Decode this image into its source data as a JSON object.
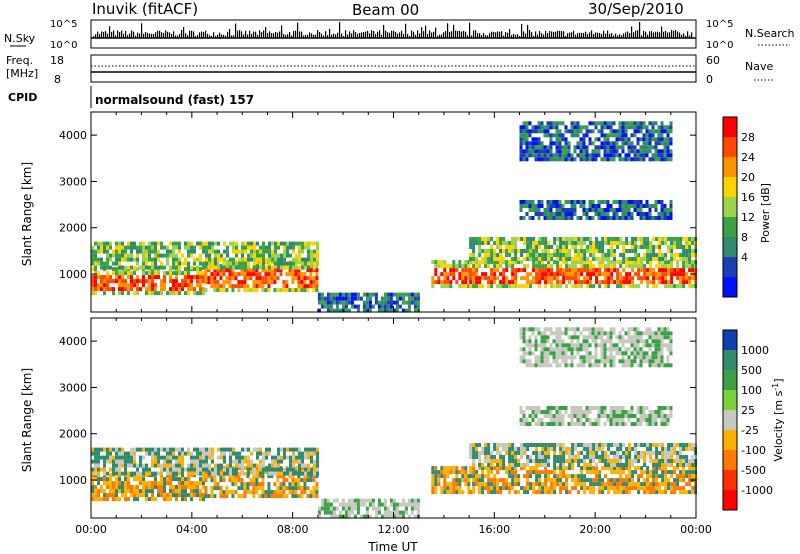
{
  "header": {
    "station": "Inuvik (fitACF)",
    "beam": "Beam 00",
    "date": "30/Sep/2010"
  },
  "noise_panel": {
    "left_label": "N.Sky",
    "right_label": "N.Search",
    "left_ticks": [
      "10^5",
      "10^0"
    ],
    "right_ticks": [
      "10^5",
      "10^0"
    ]
  },
  "freq_panel": {
    "left_label_1": "Freq.",
    "left_label_2": "[MHz]",
    "right_label": "Nave",
    "left_ticks": [
      "18",
      "8"
    ],
    "right_ticks": [
      "60",
      "0"
    ]
  },
  "cpid": {
    "label": "CPID",
    "program": "normalsound (fast) 157"
  },
  "chart_data": [
    {
      "type": "heatmap",
      "parameter": "power",
      "ylabel": "Slant Range [km]",
      "yticks": [
        1000,
        2000,
        3000,
        4000
      ],
      "ylim": [
        180,
        4500
      ],
      "xticks": [
        "00:00",
        "04:00",
        "08:00",
        "12:00",
        "16:00",
        "20:00",
        "00:00"
      ],
      "xlim_hours": [
        0,
        24
      ],
      "colorbar": {
        "label": "Power [dB]",
        "ticks": [
          "28",
          "24",
          "20",
          "16",
          "12",
          "8",
          "4"
        ],
        "colors": [
          "#ff0000",
          "#ff4a00",
          "#ff9300",
          "#ffd200",
          "#9bd34a",
          "#3aa245",
          "#2f8a6e",
          "#1c3fb5",
          "#0010ff"
        ]
      },
      "bands": [
        {
          "t": [
            0,
            4.5
          ],
          "range": [
            600,
            1150
          ],
          "level": "high"
        },
        {
          "t": [
            4.5,
            9
          ],
          "range": [
            650,
            1300
          ],
          "level": "high"
        },
        {
          "t": [
            0,
            9
          ],
          "range": [
            1150,
            1700
          ],
          "level": "mid"
        },
        {
          "t": [
            9,
            13
          ],
          "range": [
            250,
            600
          ],
          "level": "low"
        },
        {
          "t": [
            13.5,
            15
          ],
          "range": [
            700,
            1300
          ],
          "level": "high"
        },
        {
          "t": [
            15,
            24
          ],
          "range": [
            700,
            1300
          ],
          "level": "high"
        },
        {
          "t": [
            15,
            24
          ],
          "range": [
            1300,
            1800
          ],
          "level": "mid"
        },
        {
          "t": [
            17,
            23
          ],
          "range": [
            2200,
            2600
          ],
          "level": "low"
        },
        {
          "t": [
            17,
            23
          ],
          "range": [
            3500,
            4300
          ],
          "level": "low"
        }
      ]
    },
    {
      "type": "heatmap",
      "parameter": "velocity",
      "ylabel": "Slant Range [km]",
      "yticks": [
        1000,
        2000,
        3000,
        4000
      ],
      "ylim": [
        180,
        4500
      ],
      "xticks": [
        "00:00",
        "04:00",
        "08:00",
        "12:00",
        "16:00",
        "20:00",
        "00:00"
      ],
      "xlabel": "Time UT",
      "xlim_hours": [
        0,
        24
      ],
      "colorbar": {
        "label": "Velocity [m s^-1]",
        "ticks": [
          "1000",
          "500",
          "100",
          "25",
          "-25",
          "-100",
          "-500",
          "-1000"
        ],
        "colors": [
          "#1040b0",
          "#2f8a6e",
          "#3aa245",
          "#7ad13a",
          "#c8c8c0",
          "#ffb000",
          "#ff7800",
          "#ff3000",
          "#ff0000"
        ]
      }
    }
  ]
}
